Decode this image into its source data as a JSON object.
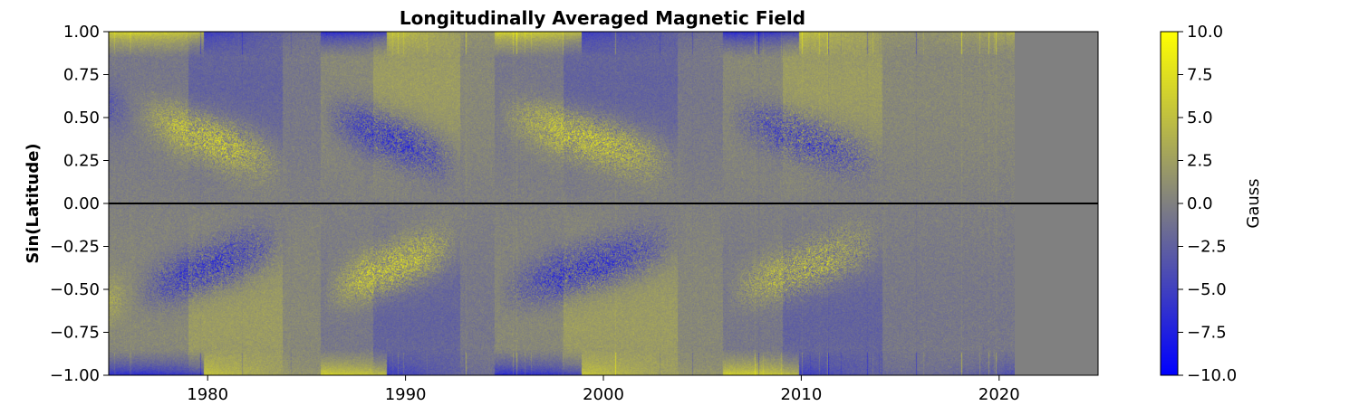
{
  "chart_data": {
    "type": "heatmap",
    "title": "Longitudinally Averaged Magnetic Field",
    "xlabel": "",
    "ylabel": "Sin(Latitude)",
    "colorbar_label": "Gauss",
    "xlim": [
      1975,
      2025
    ],
    "ylim": [
      -1.0,
      1.0
    ],
    "data_end_x": 2020.8,
    "x_ticks": [
      1980,
      1990,
      2000,
      2010,
      2020
    ],
    "y_ticks": [
      {
        "v": 1.0,
        "label": "1.00"
      },
      {
        "v": 0.75,
        "label": "0.75"
      },
      {
        "v": 0.5,
        "label": "0.50"
      },
      {
        "v": 0.25,
        "label": "0.25"
      },
      {
        "v": 0.0,
        "label": "0.00"
      },
      {
        "v": -0.25,
        "label": "−0.25"
      },
      {
        "v": -0.5,
        "label": "−0.50"
      },
      {
        "v": -0.75,
        "label": "−0.75"
      },
      {
        "v": -1.0,
        "label": "−1.00"
      }
    ],
    "colorbar_range": [
      -10.0,
      10.0
    ],
    "colorbar_ticks": [
      {
        "v": 10.0,
        "label": "10.0"
      },
      {
        "v": 7.5,
        "label": "7.5"
      },
      {
        "v": 5.0,
        "label": "5.0"
      },
      {
        "v": 2.5,
        "label": "2.5"
      },
      {
        "v": 0.0,
        "label": "0.0"
      },
      {
        "v": -2.5,
        "label": "−2.5"
      },
      {
        "v": -5.0,
        "label": "−5.0"
      },
      {
        "v": -7.5,
        "label": "−7.5"
      },
      {
        "v": -10.0,
        "label": "−10.0"
      }
    ],
    "colormap": {
      "low": "#0000ff",
      "mid": "#808080",
      "high": "#ffff00"
    },
    "equator_line_y": 0.0,
    "grid": false
  }
}
